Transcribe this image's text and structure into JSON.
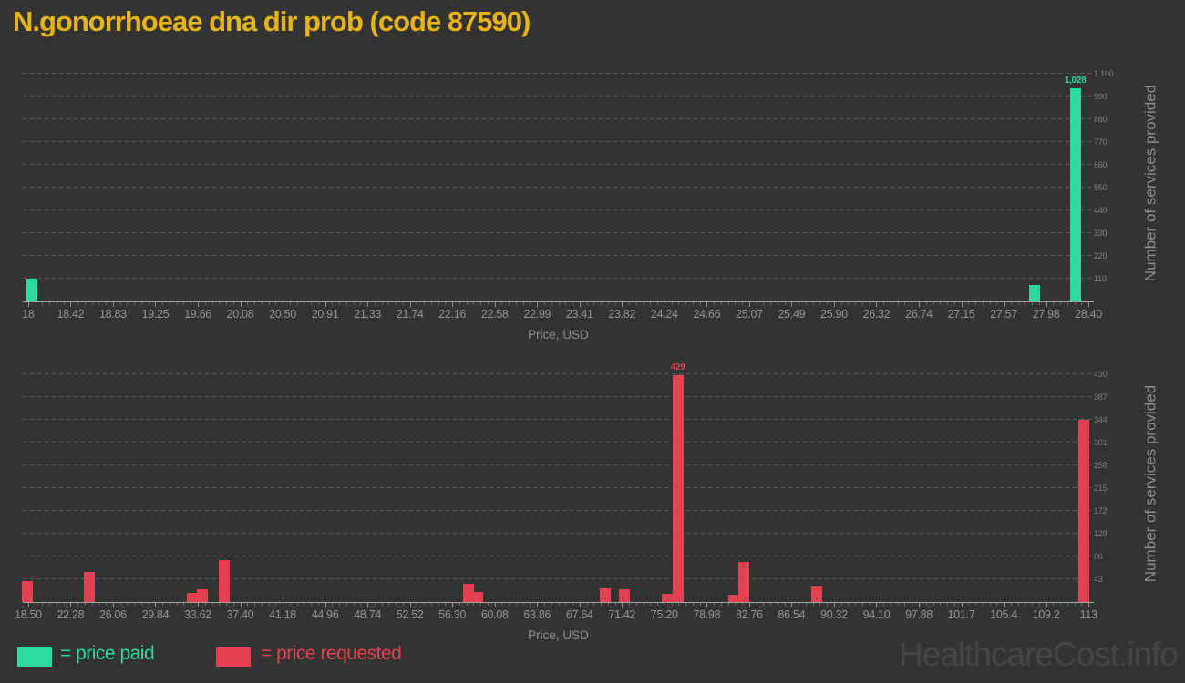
{
  "title": "N.gonorrhoeae dna dir prob (code 87590)",
  "colors": {
    "paid": "#2bd9a1",
    "requested": "#e2424f",
    "title": "#e7b416"
  },
  "legend": {
    "paid_label": "= price paid",
    "requested_label": "= price requested"
  },
  "watermark": "HealthcareCost.info",
  "chart_data": [
    {
      "type": "bar",
      "series_name": "price paid",
      "color_key": "paid",
      "xlabel": "Price, USD",
      "ylabel": "Number of services provided",
      "x_range": [
        18,
        28.4
      ],
      "x_tick_labels": [
        "18",
        "18.42",
        "18.83",
        "19.25",
        "19.66",
        "20.08",
        "20.50",
        "20.91",
        "21.33",
        "21.74",
        "22.16",
        "22.58",
        "22.99",
        "23.41",
        "23.82",
        "24.24",
        "24.66",
        "25.07",
        "25.49",
        "25.90",
        "26.32",
        "26.74",
        "27.15",
        "27.57",
        "27.98",
        "28.40"
      ],
      "y_tick_step": 110,
      "y_tick_labels": [
        "110",
        "220",
        "330",
        "440",
        "550",
        "660",
        "770",
        "880",
        "990",
        "1,100"
      ],
      "grid": true,
      "legend_position": "bottom",
      "bars": [
        {
          "price": 18.04,
          "value": 112
        },
        {
          "price": 27.87,
          "value": 78
        },
        {
          "price": 28.27,
          "value": 1028,
          "label": "1,028"
        }
      ]
    },
    {
      "type": "bar",
      "series_name": "price requested",
      "color_key": "requested",
      "xlabel": "Price, USD",
      "ylabel": "Number of services provided",
      "x_range": [
        18.5,
        113
      ],
      "x_tick_labels": [
        "18.50",
        "22.28",
        "26.06",
        "29.84",
        "33.62",
        "37.40",
        "41.18",
        "44.96",
        "48.74",
        "52.52",
        "56.30",
        "60.08",
        "63.86",
        "67.64",
        "71.42",
        "75.20",
        "78.98",
        "82.76",
        "86.54",
        "90.32",
        "94.10",
        "97.88",
        "101.7",
        "105.4",
        "109.2",
        "113"
      ],
      "y_tick_step": 43,
      "y_tick_labels": [
        "43",
        "86",
        "129",
        "172",
        "215",
        "258",
        "301",
        "344",
        "387",
        "430"
      ],
      "grid": true,
      "legend_position": "bottom",
      "bars": [
        {
          "price": 18.45,
          "value": 40
        },
        {
          "price": 23.97,
          "value": 57
        },
        {
          "price": 33.15,
          "value": 17
        },
        {
          "price": 34.05,
          "value": 24
        },
        {
          "price": 35.95,
          "value": 79
        },
        {
          "price": 57.75,
          "value": 34
        },
        {
          "price": 58.6,
          "value": 19
        },
        {
          "price": 69.9,
          "value": 26
        },
        {
          "price": 71.65,
          "value": 24
        },
        {
          "price": 75.45,
          "value": 16
        },
        {
          "price": 76.4,
          "value": 429,
          "label": "429"
        },
        {
          "price": 81.4,
          "value": 14
        },
        {
          "price": 82.3,
          "value": 76
        },
        {
          "price": 88.8,
          "value": 29
        },
        {
          "price": 112.6,
          "value": 344
        }
      ]
    }
  ]
}
